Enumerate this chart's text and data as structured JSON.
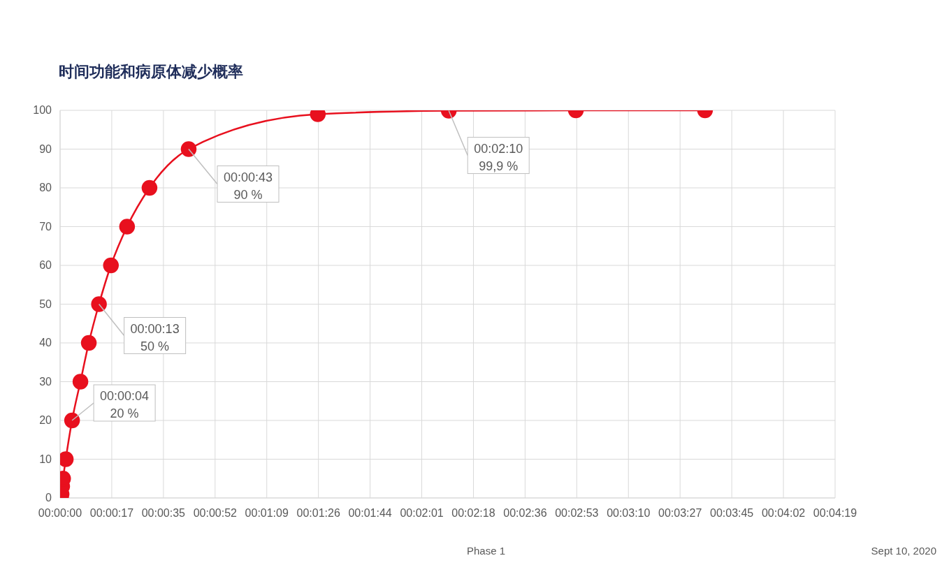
{
  "chart_data": {
    "type": "line",
    "subtitle": "时间功能和病原体减少概率",
    "x": [
      0.3,
      0.5,
      0.7,
      1.0,
      1.9,
      4,
      6.8,
      9.6,
      13,
      17,
      22.4,
      29.9,
      43,
      86.2,
      130,
      172.5,
      215.7
    ],
    "series": [
      {
        "color": "#e8101e",
        "values": [
          0,
          1,
          3,
          5,
          10,
          20,
          30,
          40,
          50,
          60,
          70,
          80,
          90,
          99,
          99.9,
          100,
          100
        ]
      }
    ],
    "xlim": [
      0,
      259.2
    ],
    "xticks": [
      {
        "value": 0,
        "label": "00:00:00"
      },
      {
        "value": 17.28,
        "label": "00:00:17"
      },
      {
        "value": 34.56,
        "label": "00:00:35"
      },
      {
        "value": 51.84,
        "label": "00:00:52"
      },
      {
        "value": 69.12,
        "label": "00:01:09"
      },
      {
        "value": 86.4,
        "label": "00:01:26"
      },
      {
        "value": 103.68,
        "label": "00:01:44"
      },
      {
        "value": 120.96,
        "label": "00:02:01"
      },
      {
        "value": 138.24,
        "label": "00:02:18"
      },
      {
        "value": 155.52,
        "label": "00:02:36"
      },
      {
        "value": 172.8,
        "label": "00:02:53"
      },
      {
        "value": 190.08,
        "label": "00:03:10"
      },
      {
        "value": 207.36,
        "label": "00:03:27"
      },
      {
        "value": 224.64,
        "label": "00:03:45"
      },
      {
        "value": 241.92,
        "label": "00:04:02"
      },
      {
        "value": 259.2,
        "label": "00:04:19"
      }
    ],
    "ylim": [
      0,
      100
    ],
    "yticks": [
      0,
      10,
      20,
      30,
      40,
      50,
      60,
      70,
      80,
      90,
      100
    ],
    "grid": true,
    "legend": false,
    "marker": "circle",
    "line_style": "solid",
    "annotations": [
      {
        "text": "00:00:04\n20 %",
        "x": 4,
        "y": 20
      },
      {
        "text": "00:00:13\n50 %",
        "x": 13,
        "y": 50
      },
      {
        "text": "00:00:43\n90 %",
        "x": 43,
        "y": 90
      },
      {
        "text": "00:02:10\n99,9 %",
        "x": 130,
        "y": 99.9
      },
      "Phase 1",
      "Sept 10, 2020"
    ]
  }
}
